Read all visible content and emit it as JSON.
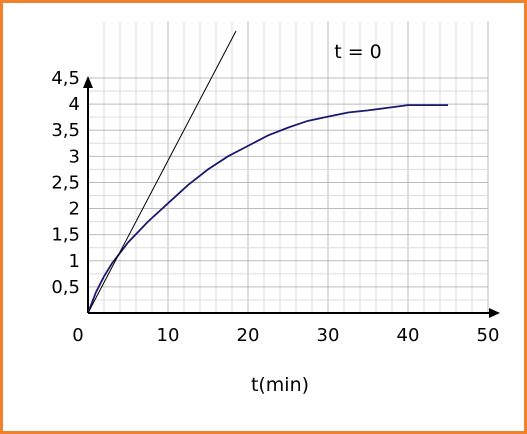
{
  "colors": {
    "frame": "#f0822d",
    "curve": "#1a1a6e",
    "tangent": "#000000",
    "grid_minor": "#dddddd",
    "grid_major": "#bbbbbb"
  },
  "chart_data": {
    "type": "line",
    "title": "",
    "annotation": "t = 0",
    "xlabel": "t(min)",
    "ylabel": "",
    "xlim": [
      0,
      50
    ],
    "ylim": [
      0,
      4.5
    ],
    "x_ticks": [
      {
        "value": 0,
        "label": "0"
      },
      {
        "value": 10,
        "label": "10"
      },
      {
        "value": 20,
        "label": "20"
      },
      {
        "value": 30,
        "label": "30"
      },
      {
        "value": 40,
        "label": "40"
      },
      {
        "value": 50,
        "label": "50"
      }
    ],
    "y_ticks": [
      {
        "value": 0.5,
        "label": "0,5"
      },
      {
        "value": 1,
        "label": "1"
      },
      {
        "value": 1.5,
        "label": "1,5"
      },
      {
        "value": 2,
        "label": "2"
      },
      {
        "value": 2.5,
        "label": "2,5"
      },
      {
        "value": 3,
        "label": "3"
      },
      {
        "value": 3.5,
        "label": "3,5"
      },
      {
        "value": 4,
        "label": "4"
      },
      {
        "value": 4.5,
        "label": "4,5"
      }
    ],
    "grid": true,
    "grid_minor_step": {
      "x": 2,
      "y": 0.25
    },
    "series": [
      {
        "x": [
          0,
          1,
          2,
          3,
          5,
          7.5,
          10,
          12.5,
          15,
          17.5,
          20,
          22.5,
          25,
          27.5,
          30,
          32.5,
          35,
          37.5,
          40,
          42.5,
          45
        ],
        "y": [
          0,
          0.4,
          0.7,
          0.95,
          1.35,
          1.75,
          2.1,
          2.45,
          2.75,
          3.0,
          3.2,
          3.4,
          3.55,
          3.68,
          3.76,
          3.84,
          3.88,
          3.93,
          3.98,
          3.98,
          3.98
        ]
      }
    ],
    "tangent_line": {
      "x": [
        0,
        18.5
      ],
      "y": [
        0,
        5.4
      ]
    }
  }
}
